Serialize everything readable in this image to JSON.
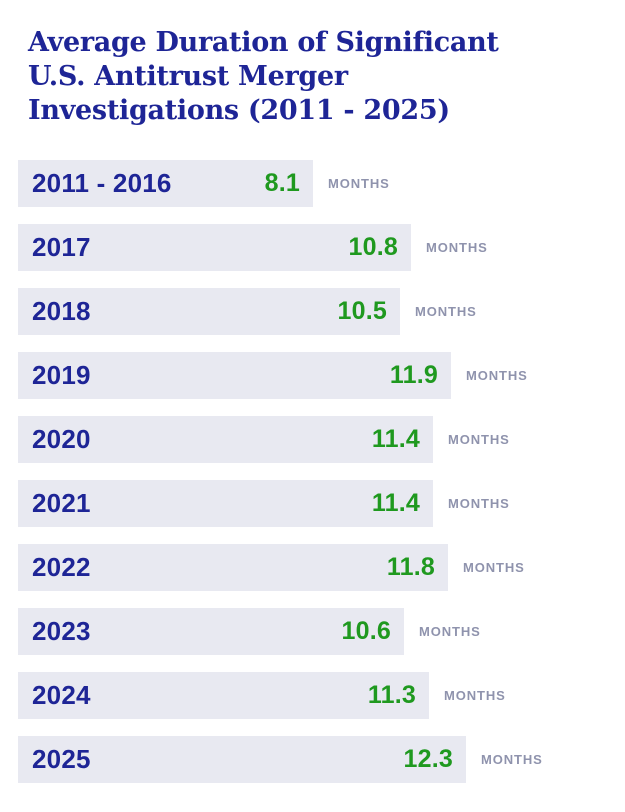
{
  "title_lines": [
    "Average Duration of Significant",
    "U.S. Antitrust Merger",
    "Investigations (2011 - 2025)"
  ],
  "colors": {
    "navy": "#1e2596",
    "green": "#1f991f",
    "bar_bg": "#e8e9f1",
    "months_gray": "#8f93ad",
    "page_bg": "#ffffff"
  },
  "chart_data": {
    "type": "bar",
    "orientation": "horizontal",
    "title": "Average Duration of Significant U.S. Antitrust Merger Investigations (2011 - 2025)",
    "categories": [
      "2011 - 2016",
      "2017",
      "2018",
      "2019",
      "2020",
      "2021",
      "2022",
      "2023",
      "2024",
      "2025"
    ],
    "values": [
      8.1,
      10.8,
      10.5,
      11.9,
      11.4,
      11.4,
      11.8,
      10.6,
      11.3,
      12.3
    ],
    "unit": "MONTHS",
    "xlim": [
      0,
      12.8
    ],
    "grid": false,
    "legend": false,
    "value_labels": "inside-bar-right",
    "category_labels": "inside-bar-left"
  }
}
